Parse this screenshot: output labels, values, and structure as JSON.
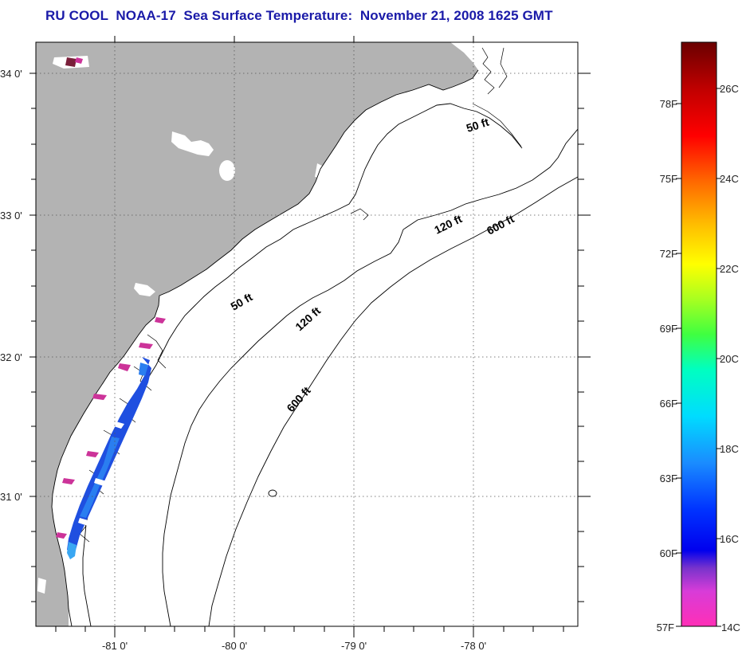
{
  "title": "RU COOL  NOAA-17  Sea Surface Temperature:  November 21, 2008 1625 GMT",
  "map": {
    "latitude_labels": [
      "34 0'",
      "33 0'",
      "32 0'",
      "31 0'"
    ],
    "longitude_labels": [
      "-81 0'",
      "-80 0'",
      "-79 0'",
      "-78 0'"
    ],
    "contour_labels": [
      "50 ft",
      "50 ft",
      "120 ft",
      "120 ft",
      "600 ft",
      "600 ft"
    ]
  },
  "colorbar": {
    "fahrenheit_labels": [
      "78F",
      "75F",
      "72F",
      "69F",
      "66F",
      "63F",
      "60F",
      "57F"
    ],
    "celsius_labels": [
      "26C",
      "24C",
      "22C",
      "20C",
      "18C",
      "16C",
      "14C"
    ]
  },
  "colors": {
    "land": "#b3b3b3",
    "title": "#1a1aa8",
    "sst_dark_blue": "#1f4fe0",
    "sst_mid_blue": "#2a7ef0",
    "sst_magenta": "#cc3399"
  }
}
